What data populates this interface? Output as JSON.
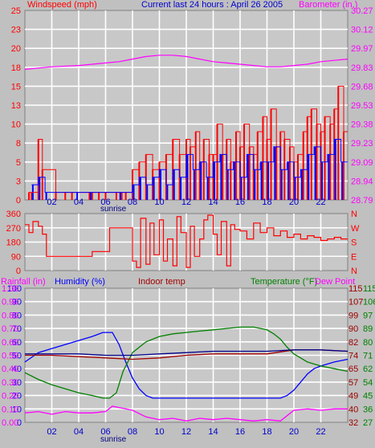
{
  "header": {
    "title": "Current last 24 hours : April 26 2005",
    "wind_label": "Windspeed (mph)",
    "baro_label": "Barometer (in.)",
    "rain_label": "Rainfall (in)",
    "humidity_label": "Humidity (%)",
    "indoor_label": "Indoor temp",
    "temperature_label": "Temperature (°F)",
    "dewpoint_label": "Dew Point",
    "sunrise_label": "sunrise"
  },
  "colors": {
    "background": "#c0c0c0",
    "plot_bg": "#c8c8c8",
    "grid": "#ffffff",
    "red": "#ff0000",
    "blue": "#0000ff",
    "magenta": "#ff00ff",
    "green": "#008000",
    "dark_red": "#a00000",
    "dark_blue": "#0000a0",
    "navy": "#00008b"
  },
  "chart_data": [
    {
      "type": "bar",
      "panel": "wind",
      "x_ticks": [
        "02",
        "04",
        "06",
        "08",
        "10",
        "12",
        "14",
        "16",
        "18",
        "20",
        "22"
      ],
      "y_left_ticks": [
        "25",
        "23",
        "20",
        "18",
        "15",
        "13",
        "10",
        "8",
        "5",
        "3",
        "0"
      ],
      "y_right_ticks": [
        "30.27",
        "30.12",
        "29.97",
        "29.83",
        "29.68",
        "29.53",
        "29.38",
        "29.23",
        "29.09",
        "28.94",
        "28.79"
      ],
      "xlim": [
        0,
        24
      ],
      "ylim_left": [
        0,
        25
      ],
      "ylim_right": [
        28.79,
        30.27
      ],
      "series": [
        {
          "name": "Windspeed (mph)",
          "color": "red",
          "kind": "gust",
          "x": [
            0.3,
            0.5,
            1.0,
            1.3,
            2.3,
            3.0,
            3.5,
            4.8,
            5.0,
            5.5,
            6.0,
            6.8,
            7.2,
            7.5,
            8.0,
            8.5,
            9.0,
            9.5,
            10.0,
            10.5,
            11.0,
            11.5,
            12.0,
            12.3,
            12.7,
            13.0,
            13.3,
            13.7,
            14.0,
            14.3,
            14.7,
            15.0,
            15.3,
            15.7,
            16.0,
            16.3,
            16.7,
            17.0,
            17.3,
            17.7,
            18.0,
            18.3,
            18.7,
            19.0,
            19.3,
            19.7,
            20.0,
            20.3,
            20.7,
            21.0,
            21.3,
            21.7,
            22.0,
            22.3,
            22.7,
            23.0,
            23.3,
            23.7
          ],
          "y": [
            1,
            1,
            8,
            4,
            1,
            1,
            1,
            1,
            1,
            1,
            1,
            1,
            1,
            1,
            4,
            5,
            6,
            4,
            5,
            6,
            8,
            6,
            8,
            7,
            9,
            5,
            8,
            6,
            6,
            10,
            6,
            8,
            5,
            9,
            7,
            10,
            7,
            6,
            9,
            11,
            8,
            12,
            7,
            9,
            8,
            7,
            5,
            6,
            9,
            11,
            12,
            10,
            9,
            11,
            10,
            12,
            15,
            9
          ]
        },
        {
          "name": "Average windspeed",
          "color": "blue",
          "kind": "average",
          "x": [
            0.5,
            1.0,
            1.5,
            3.8,
            4.8,
            7.0,
            8.0,
            8.5,
            9.0,
            9.5,
            10.0,
            10.5,
            11.0,
            11.5,
            12.0,
            12.5,
            13.0,
            13.5,
            14.0,
            14.5,
            15.0,
            15.5,
            16.0,
            16.5,
            17.0,
            17.5,
            18.0,
            18.5,
            19.0,
            19.5,
            20.0,
            20.5,
            21.0,
            21.5,
            22.0,
            22.5,
            23.0,
            23.5
          ],
          "y": [
            2,
            3,
            1,
            1,
            1,
            1,
            2,
            3,
            2,
            3,
            4,
            2,
            4,
            3,
            6,
            4,
            5,
            3,
            5,
            6,
            4,
            5,
            3,
            6,
            4,
            5,
            5,
            7,
            4,
            5,
            3,
            4,
            6,
            7,
            5,
            6,
            8,
            5
          ]
        },
        {
          "name": "Barometer (in.)",
          "color": "magenta",
          "kind": "line",
          "x": [
            0,
            2,
            4,
            6,
            7,
            8,
            9,
            10,
            11,
            12,
            13,
            14,
            15,
            16,
            17,
            18,
            19,
            20,
            21,
            22,
            23,
            24
          ],
          "y": [
            29.81,
            29.83,
            29.84,
            29.86,
            29.87,
            29.89,
            29.91,
            29.92,
            29.92,
            29.91,
            29.89,
            29.87,
            29.86,
            29.85,
            29.84,
            29.83,
            29.83,
            29.84,
            29.85,
            29.87,
            29.88,
            29.89
          ]
        }
      ]
    },
    {
      "type": "line",
      "panel": "direction",
      "y_left_ticks": [
        "360",
        "270",
        "180",
        "90",
        "0"
      ],
      "y_right_ticks": [
        "N",
        "W",
        "S",
        "E",
        "N"
      ],
      "xlim": [
        0,
        24
      ],
      "ylim": [
        0,
        360
      ],
      "series": [
        {
          "name": "Wind direction",
          "color": "red",
          "x": [
            0,
            0.3,
            0.6,
            1.0,
            1.3,
            1.6,
            2.0,
            3.0,
            4.0,
            5.0,
            5.5,
            6.0,
            6.3,
            6.6,
            7.0,
            7.5,
            8.0,
            8.3,
            8.6,
            9.0,
            9.3,
            9.6,
            10.0,
            10.3,
            10.6,
            11.0,
            11.3,
            11.6,
            12.0,
            12.3,
            12.6,
            13.0,
            13.3,
            13.6,
            14.0,
            14.3,
            14.6,
            15.0,
            15.3,
            15.6,
            16.0,
            16.5,
            17.0,
            17.5,
            18.0,
            18.5,
            19.0,
            19.5,
            20.0,
            20.5,
            21.0,
            21.5,
            22.0,
            22.5,
            23.0,
            23.5
          ],
          "y": [
            290,
            240,
            310,
            280,
            230,
            90,
            90,
            90,
            90,
            120,
            120,
            120,
            270,
            270,
            270,
            270,
            60,
            20,
            330,
            40,
            300,
            100,
            320,
            60,
            200,
            30,
            340,
            240,
            20,
            280,
            90,
            200,
            320,
            350,
            230,
            100,
            310,
            30,
            290,
            260,
            250,
            200,
            300,
            240,
            270,
            220,
            250,
            210,
            230,
            200,
            220,
            210,
            190,
            200,
            210,
            200
          ]
        }
      ]
    },
    {
      "type": "line",
      "panel": "temperature",
      "y_left_ticks": [
        "100",
        "90",
        "80",
        "70",
        "60",
        "50",
        "40",
        "30",
        "20",
        "10",
        "0"
      ],
      "y_left_rain_ticks": [
        "1.00",
        "0.90",
        "0.80",
        "0.70",
        "0.60",
        "0.50",
        "0.40",
        "0.30",
        "0.20",
        "0.10",
        "0.00"
      ],
      "y_right_temp_ticks": [
        "115",
        "107",
        "99",
        "90",
        "82",
        "74",
        "65",
        "57",
        "49",
        "40",
        "32"
      ],
      "y_right_dew_ticks": [
        "115",
        "106",
        "97",
        "89",
        "80",
        "71",
        "62",
        "54",
        "45",
        "36",
        "27"
      ],
      "xlim": [
        0,
        24
      ],
      "ylim": [
        0,
        100
      ],
      "series": [
        {
          "name": "Humidity (%)",
          "color": "blue",
          "x": [
            0,
            1,
            2,
            3,
            4,
            5,
            5.8,
            6.5,
            7.0,
            7.5,
            8.0,
            8.5,
            9.0,
            9.5,
            10.0,
            11.0,
            12.0,
            13.0,
            14.0,
            15.0,
            16.0,
            17.0,
            18.0,
            19.0,
            19.5,
            20.0,
            20.5,
            21.0,
            21.5,
            22.0,
            23.0,
            24.0
          ],
          "y": [
            45,
            52,
            55,
            58,
            61,
            64,
            67,
            67,
            58,
            45,
            33,
            25,
            20,
            18,
            18,
            18,
            18,
            18,
            18,
            18,
            18,
            18,
            18,
            18,
            20,
            24,
            30,
            36,
            40,
            42,
            45,
            47
          ]
        },
        {
          "name": "Temperature (°F)",
          "color": "green",
          "x": [
            0,
            1,
            2,
            3,
            4,
            5,
            5.8,
            6.3,
            6.8,
            7.3,
            8.0,
            9.0,
            10.0,
            11.0,
            12.0,
            13.0,
            14.0,
            15.0,
            16.0,
            17.0,
            18.0,
            18.5,
            19.0,
            19.5,
            20.0,
            21.0,
            22.0,
            23.0,
            24.0
          ],
          "y": [
            37,
            32,
            28,
            25,
            22,
            20,
            18,
            18,
            22,
            38,
            52,
            60,
            64,
            66,
            67,
            68,
            69,
            70,
            71,
            71,
            69,
            66,
            62,
            56,
            51,
            45,
            42,
            40,
            38
          ]
        },
        {
          "name": "Indoor temp",
          "color": "dark_red",
          "x": [
            0,
            2,
            4,
            6,
            8,
            10,
            12,
            14,
            16,
            18,
            20,
            22,
            24
          ],
          "y": [
            50,
            50,
            49,
            48,
            47,
            48,
            50,
            51,
            51,
            51,
            54,
            54,
            53
          ]
        },
        {
          "name": "Dew Point",
          "color": "navy",
          "x": [
            0,
            2,
            4,
            6,
            8,
            10,
            12,
            14,
            16,
            18,
            20,
            22,
            24
          ],
          "y": [
            51,
            51,
            51,
            50,
            50,
            51,
            52,
            53,
            53,
            53,
            54,
            54,
            53
          ]
        },
        {
          "name": "Rainfall (in)",
          "color": "magenta",
          "x": [
            0,
            1,
            2,
            3,
            4,
            5,
            6,
            6.5,
            7,
            7.5,
            8,
            9,
            10,
            11,
            12,
            13,
            14,
            15,
            16,
            17,
            18,
            19,
            20,
            21,
            22,
            23,
            24
          ],
          "y": [
            7,
            8,
            6,
            8,
            7,
            7,
            8,
            12,
            11,
            10,
            9,
            4,
            2,
            3,
            1,
            3,
            2,
            3,
            2,
            1,
            2,
            1,
            9,
            10,
            9,
            10,
            10
          ]
        }
      ]
    }
  ]
}
